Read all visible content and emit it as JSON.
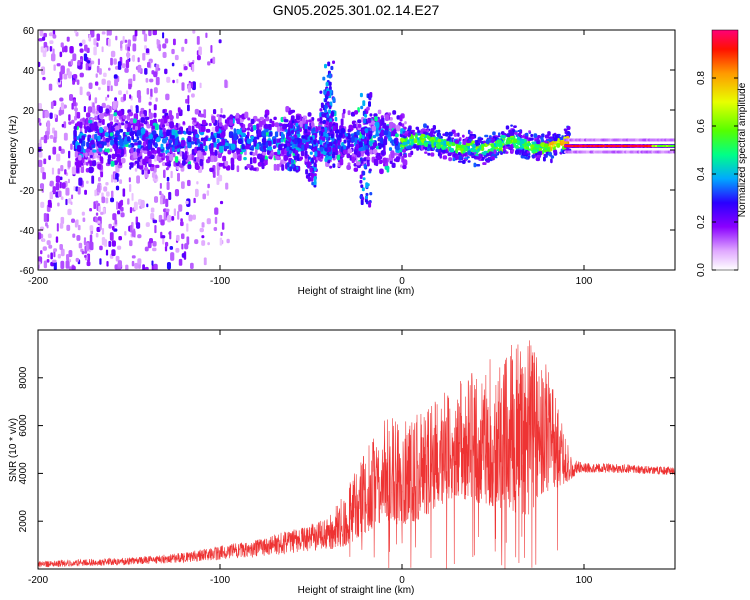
{
  "title": "GN05.2025.301.02.14.E27",
  "colors": {
    "line": "#ee3333",
    "axis": "#000000",
    "background": "#ffffff"
  },
  "chart_data": [
    {
      "type": "heatmap",
      "name": "spectrogram",
      "xlabel": "Height of straight line (km)",
      "ylabel": "Frequency (Hz)",
      "xlim": [
        -200,
        150
      ],
      "ylim": [
        -60,
        60
      ],
      "xticks": [
        -200,
        -100,
        0,
        100
      ],
      "yticks": [
        -60,
        -40,
        -20,
        0,
        20,
        40,
        60
      ],
      "colorbar": {
        "label": "Normalized spectral amplitude",
        "range": [
          0,
          1
        ],
        "ticks": [
          0.0,
          0.2,
          0.4,
          0.6,
          0.8
        ],
        "tick_labels": [
          "0.0",
          "0.2",
          "0.4",
          "0.6",
          "0.8"
        ],
        "colormap": [
          "#ffffff",
          "#a000ff",
          "#3300ff",
          "#00ccff",
          "#00ff66",
          "#ccff00",
          "#ffaa00",
          "#ff0000",
          "#ff0077"
        ]
      },
      "features": [
        {
          "feature": "broadband noise",
          "x_range": [
            -200,
            -95
          ],
          "freq_range": [
            -60,
            60
          ],
          "amplitude": 0.15
        },
        {
          "feature": "main band",
          "x_range": [
            -180,
            0
          ],
          "center_freq": 5,
          "halfwidth": 8,
          "amplitude": 0.3
        },
        {
          "feature": "spike",
          "x": -40,
          "freq_range": [
            -10,
            45
          ],
          "amplitude": 0.35
        },
        {
          "feature": "spike",
          "x": -20,
          "freq_range": [
            -25,
            30
          ],
          "amplitude": 0.3
        },
        {
          "feature": "narrow band",
          "x_range": [
            0,
            90
          ],
          "center_freq": 3,
          "halfwidth": 4,
          "amplitude": 0.55
        },
        {
          "feature": "stable line",
          "x_range": [
            90,
            150
          ],
          "center_freq": 2,
          "halfwidth": 1,
          "amplitude": 0.95
        }
      ]
    },
    {
      "type": "line",
      "name": "snr",
      "xlabel": "Height of straight line (km)",
      "ylabel": "SNR (10 * v/v)",
      "xlim": [
        -200,
        150
      ],
      "ylim": [
        0,
        10000
      ],
      "xticks": [
        -200,
        -100,
        0,
        100
      ],
      "yticks": [
        2000,
        4000,
        6000,
        8000
      ],
      "envelope": {
        "x": [
          -200,
          -150,
          -120,
          -100,
          -80,
          -60,
          -40,
          -30,
          -20,
          -10,
          0,
          10,
          20,
          30,
          40,
          50,
          60,
          70,
          80,
          90,
          95,
          100,
          120,
          150
        ],
        "lower": [
          50,
          150,
          250,
          350,
          450,
          600,
          800,
          1000,
          1500,
          2000,
          1800,
          2000,
          2600,
          3000,
          2800,
          2600,
          2400,
          2200,
          3200,
          3600,
          3900,
          4000,
          4000,
          3900
        ],
        "upper": [
          350,
          500,
          700,
          1000,
          1300,
          1700,
          2200,
          3400,
          5000,
          6200,
          6800,
          6500,
          7200,
          7800,
          8400,
          9200,
          9400,
          9800,
          8500,
          5500,
          4600,
          4500,
          4400,
          4300
        ]
      }
    }
  ]
}
